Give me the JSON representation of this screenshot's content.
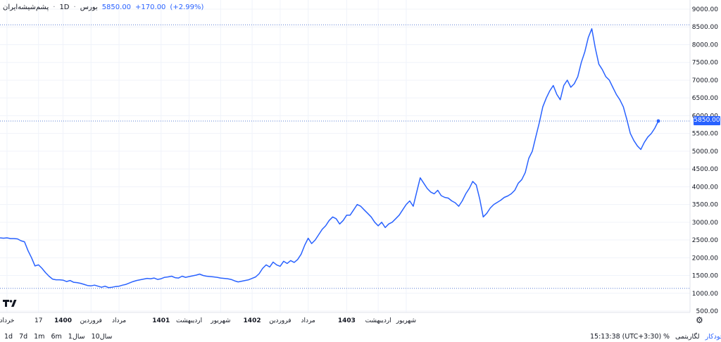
{
  "legend": {
    "symbol": "پشم‌شیشه‌ایران",
    "interval": "1D",
    "exchange": "بورس",
    "price": "5850.00",
    "change": "+170.00",
    "change_pct": "(+2.99%)",
    "separator": "·"
  },
  "chart_data": {
    "type": "line",
    "title": "",
    "xlabel": "",
    "ylabel": "",
    "ylim": [
      500,
      9000
    ],
    "y_ticks": [
      "9000.00",
      "8500.00",
      "8000.00",
      "7500.00",
      "7000.00",
      "6500.00",
      "6000.00",
      "5500.00",
      "5000.00",
      "4500.00",
      "4000.00",
      "3500.00",
      "3000.00",
      "2500.00",
      "2000.00",
      "1500.00",
      "1000.00",
      "500.00"
    ],
    "x_ticks": [
      {
        "label": "خرداد",
        "bold": false,
        "index": 2
      },
      {
        "label": "17",
        "bold": false,
        "index": 11
      },
      {
        "label": "1400",
        "bold": true,
        "index": 18
      },
      {
        "label": "فروردین",
        "bold": false,
        "index": 26
      },
      {
        "label": "مرداد",
        "bold": false,
        "index": 34
      },
      {
        "label": "1401",
        "bold": true,
        "index": 46
      },
      {
        "label": "اردیبهشت",
        "bold": false,
        "index": 54
      },
      {
        "label": "شهریور",
        "bold": false,
        "index": 63
      },
      {
        "label": "1402",
        "bold": true,
        "index": 72
      },
      {
        "label": "فروردین",
        "bold": false,
        "index": 80
      },
      {
        "label": "مرداد",
        "bold": false,
        "index": 88
      },
      {
        "label": "1403",
        "bold": true,
        "index": 99
      },
      {
        "label": "اردیبهشت",
        "bold": false,
        "index": 108
      },
      {
        "label": "شهریور",
        "bold": false,
        "index": 116
      }
    ],
    "hlines": [
      8560,
      5850,
      1140
    ],
    "last_value": "5850.00",
    "series": [
      {
        "color": "#2962ff",
        "values": [
          2560,
          2550,
          2560,
          2540,
          2540,
          2530,
          2480,
          2450,
          2200,
          2000,
          1770,
          1800,
          1700,
          1580,
          1480,
          1400,
          1380,
          1380,
          1370,
          1330,
          1360,
          1310,
          1300,
          1280,
          1250,
          1220,
          1210,
          1230,
          1200,
          1170,
          1200,
          1160,
          1170,
          1190,
          1200,
          1230,
          1250,
          1290,
          1330,
          1360,
          1380,
          1400,
          1420,
          1410,
          1430,
          1390,
          1410,
          1450,
          1460,
          1480,
          1440,
          1430,
          1480,
          1450,
          1470,
          1490,
          1510,
          1540,
          1500,
          1480,
          1470,
          1460,
          1450,
          1430,
          1420,
          1410,
          1390,
          1350,
          1320,
          1340,
          1360,
          1380,
          1420,
          1460,
          1550,
          1700,
          1800,
          1740,
          1880,
          1800,
          1760,
          1900,
          1840,
          1920,
          1870,
          1950,
          2100,
          2350,
          2550,
          2400,
          2500,
          2650,
          2800,
          2900,
          3050,
          3150,
          3100,
          2950,
          3050,
          3200,
          3200,
          3350,
          3500,
          3450,
          3350,
          3250,
          3150,
          3000,
          2900,
          3000,
          2850,
          2950,
          3000,
          3100,
          3200,
          3350,
          3500,
          3600,
          3450,
          3850,
          4250,
          4100,
          3950,
          3850,
          3800,
          3900,
          3750,
          3700,
          3680,
          3600,
          3550,
          3450,
          3600,
          3800,
          3950,
          4150,
          4050,
          3650,
          3150,
          3250,
          3400,
          3500,
          3560,
          3620,
          3700,
          3740,
          3800,
          3900,
          4100,
          4200,
          4400,
          4800,
          5000,
          5400,
          5800,
          6250,
          6500,
          6700,
          6850,
          6600,
          6450,
          6850,
          7000,
          6800,
          6900,
          7100,
          7500,
          7800,
          8200,
          8450,
          7900,
          7450,
          7300,
          7100,
          7000,
          6800,
          6600,
          6450,
          6250,
          5900,
          5500,
          5300,
          5150,
          5050,
          5250,
          5400,
          5500,
          5650,
          5850
        ]
      }
    ]
  },
  "bottom": {
    "ranges": [
      "1d",
      "7d",
      "1m",
      "6m",
      "1سال",
      "10سال"
    ],
    "time": "15:13:38 (UTC+3:30)",
    "percent": "%",
    "log": "لگاریتمی",
    "auto": "خودکار"
  },
  "colors": {
    "accent": "#2962ff",
    "grid": "#f0f3fa",
    "dotted": "#5b7fd6"
  },
  "icons": {
    "logo": "tradingview-logo-icon",
    "settings": "gear-icon"
  }
}
